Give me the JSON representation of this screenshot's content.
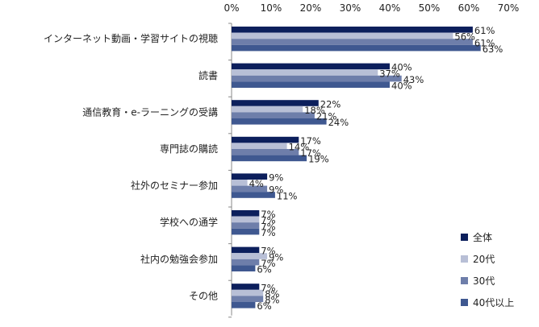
{
  "chart_data": {
    "type": "bar",
    "orientation": "horizontal",
    "title": "",
    "xlabel": "",
    "ylabel": "",
    "xlim": [
      0,
      70
    ],
    "ticks": [
      "0%",
      "10%",
      "20%",
      "30%",
      "40%",
      "50%",
      "60%",
      "70%"
    ],
    "tick_values": [
      0,
      10,
      20,
      30,
      40,
      50,
      60,
      70
    ],
    "grid": false,
    "legend_position": "bottom-right",
    "categories": [
      "インターネット動画・学習サイトの視聴",
      "読書",
      "通信教育・e-ラーニングの受講",
      "専門誌の購読",
      "社外のセミナー参加",
      "学校への通学",
      "社内の勉強会参加",
      "その他"
    ],
    "series": [
      {
        "name": "全体",
        "color": "#0c1f5c",
        "values": [
          61,
          40,
          22,
          17,
          9,
          7,
          7,
          7
        ],
        "labels": [
          "61%",
          "40%",
          "22%",
          "17%",
          "9%",
          "7%",
          "7%",
          "7%"
        ]
      },
      {
        "name": "20代",
        "color": "#b8bfd6",
        "values": [
          56,
          37,
          18,
          14,
          4,
          7,
          9,
          8
        ],
        "labels": [
          "56%",
          "37%",
          "18%",
          "14%",
          "4%",
          "7%",
          "9%",
          "8%"
        ]
      },
      {
        "name": "30代",
        "color": "#6e7eaa",
        "values": [
          61,
          43,
          21,
          17,
          9,
          7,
          7,
          8
        ],
        "labels": [
          "61%",
          "43%",
          "21%",
          "17%",
          "9%",
          "7%",
          "7%",
          "8%"
        ]
      },
      {
        "name": "40代以上",
        "color": "#3f5890",
        "values": [
          63,
          40,
          24,
          19,
          11,
          7,
          6,
          6
        ],
        "labels": [
          "63%",
          "40%",
          "24%",
          "19%",
          "11%",
          "7%",
          "6%",
          "6%"
        ]
      }
    ]
  }
}
